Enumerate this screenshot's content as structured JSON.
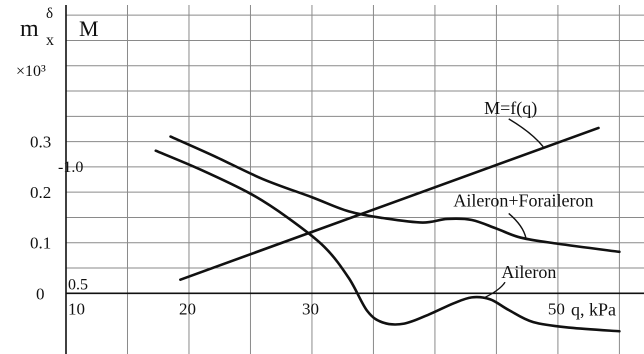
{
  "chart_data": {
    "type": "line",
    "title": "",
    "xlabel": "q, kPa",
    "ylabel_left_main": "m",
    "ylabel_left_sup": "δ",
    "ylabel_left_sub": "x",
    "ylabel_left_scale": "×10³",
    "ylabel_right": "M",
    "xlim": [
      10,
      57
    ],
    "ylim": [
      -0.12,
      0.58
    ],
    "grid": true,
    "x_ticks": [
      {
        "value": 10,
        "label": "10"
      },
      {
        "value": 20,
        "label": "20"
      },
      {
        "value": 30,
        "label": "30"
      },
      {
        "value": 50,
        "label": "50"
      }
    ],
    "y_ticks": [
      {
        "value": 0,
        "label": "0"
      },
      {
        "value": 0.1,
        "label": "0.1"
      },
      {
        "value": 0.2,
        "label": "0.2"
      },
      {
        "value": 0.3,
        "label": "0.3"
      }
    ],
    "m_ticks": [
      {
        "value": 0.0,
        "label": "0.5"
      },
      {
        "value": 0.25,
        "label": "-1.0"
      }
    ],
    "series": [
      {
        "name": "M=f(q)",
        "x": [
          19.3,
          53.3
        ],
        "y": [
          0.027,
          0.327
        ]
      },
      {
        "name": "Aileron+Foraileron",
        "x": [
          18.5,
          22,
          26,
          30,
          33,
          36,
          39,
          41,
          43,
          45,
          47,
          50,
          55
        ],
        "y": [
          0.31,
          0.272,
          0.226,
          0.19,
          0.162,
          0.148,
          0.14,
          0.147,
          0.145,
          0.128,
          0.11,
          0.098,
          0.082
        ]
      },
      {
        "name": "Aileron",
        "x": [
          17.3,
          21,
          25,
          28,
          31,
          33,
          34.5,
          35.8,
          37.5,
          39.5,
          41.5,
          43,
          44.5,
          46,
          48,
          51,
          55
        ],
        "y": [
          0.282,
          0.244,
          0.197,
          0.15,
          0.092,
          0.03,
          -0.035,
          -0.058,
          -0.06,
          -0.042,
          -0.02,
          -0.008,
          -0.012,
          -0.033,
          -0.057,
          -0.068,
          -0.075
        ]
      }
    ],
    "annotations": [
      {
        "text": "M=f(q)",
        "x": 44,
        "y": 0.355,
        "lx": 46,
        "ly": 0.345,
        "ax": 48.8,
        "ay": 0.29
      },
      {
        "text": "Aileron+Foraileron",
        "x": 41.5,
        "y": 0.172,
        "lx": 46,
        "ly": 0.158,
        "ax": 47.4,
        "ay": 0.109
      },
      {
        "text": "Aileron",
        "x": 45.4,
        "y": 0.03,
        "lx": 45.7,
        "ly": 0.022,
        "ax": 43.9,
        "ay": -0.01
      }
    ]
  }
}
